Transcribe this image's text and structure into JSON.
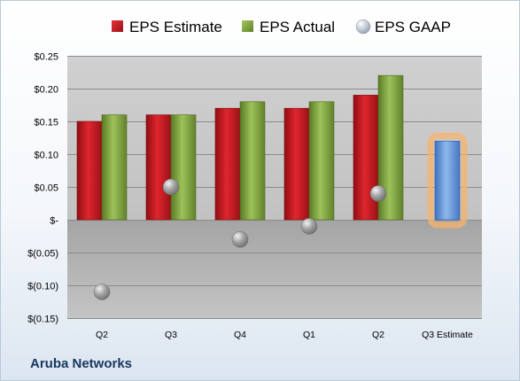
{
  "company": "Aruba Networks",
  "legend": [
    {
      "label": "EPS Estimate",
      "color": "#c0141c",
      "shape": "square"
    },
    {
      "label": "EPS Actual",
      "color": "#7a9a3a",
      "shape": "square"
    },
    {
      "label": "EPS GAAP",
      "color": "#a6a6a6",
      "shape": "circle"
    }
  ],
  "chart_data": {
    "type": "bar",
    "categories": [
      "Q2",
      "Q3",
      "Q4",
      "Q1",
      "Q2",
      "Q3 Estimate"
    ],
    "series": [
      {
        "name": "EPS Estimate",
        "color": "#c0141c",
        "values": [
          0.15,
          0.16,
          0.17,
          0.17,
          0.19,
          null
        ]
      },
      {
        "name": "EPS Actual",
        "color": "#7a9a3a",
        "values": [
          0.16,
          0.16,
          0.18,
          0.18,
          0.22,
          null
        ]
      },
      {
        "name": "EPS GAAP",
        "type": "scatter",
        "color": "#a6a6a6",
        "values": [
          -0.11,
          0.05,
          -0.03,
          -0.01,
          0.04,
          null
        ]
      },
      {
        "name": "Q3 Estimate",
        "color": "#5b8fd6",
        "highlight": "#f7b26b",
        "values": [
          null,
          null,
          null,
          null,
          null,
          0.12
        ]
      }
    ],
    "ylim": [
      -0.15,
      0.25
    ],
    "yticks": [
      {
        "value": 0.25,
        "label": "$0.25"
      },
      {
        "value": 0.2,
        "label": "$0.20"
      },
      {
        "value": 0.15,
        "label": "$0.15"
      },
      {
        "value": 0.1,
        "label": "$0.10"
      },
      {
        "value": 0.05,
        "label": "$0.05"
      },
      {
        "value": 0.0,
        "label": "$-"
      },
      {
        "value": -0.05,
        "label": "$(0.05)"
      },
      {
        "value": -0.1,
        "label": "$(0.10)"
      },
      {
        "value": -0.15,
        "label": "$(0.15)"
      }
    ],
    "grid": true,
    "legend_position": "top"
  }
}
